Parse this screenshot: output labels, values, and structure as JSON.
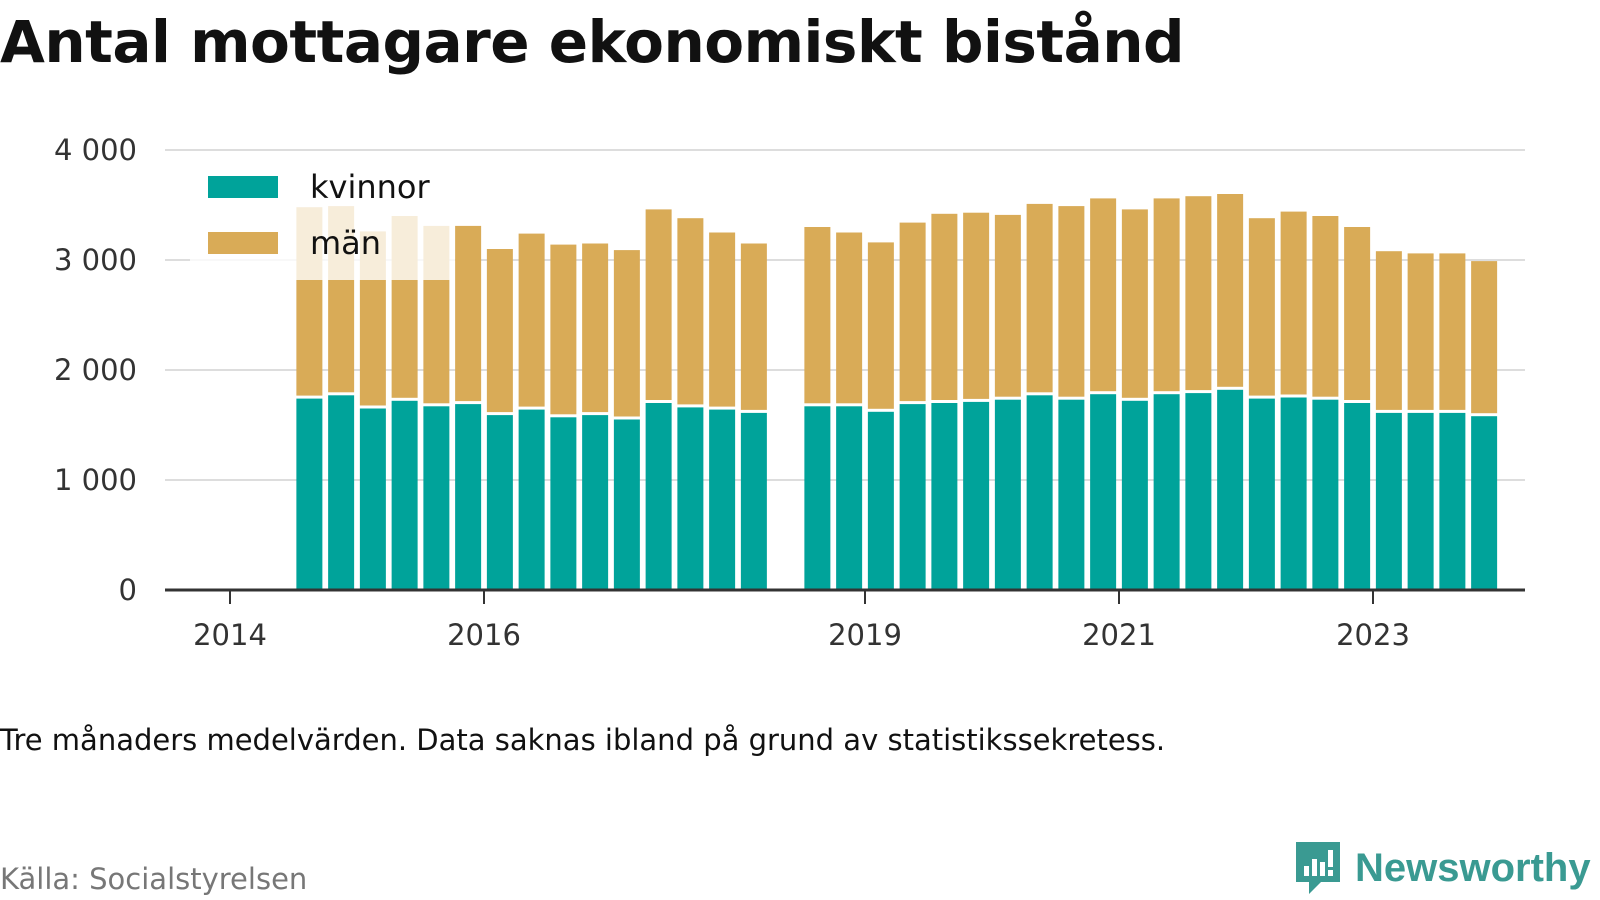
{
  "title": "Antal mottagare ekonomiskt bistånd",
  "note": "Tre månaders medelvärden. Data saknas ibland på grund av statistikssekretess.",
  "source": "Källa: Socialstyrelsen",
  "brand": {
    "name": "Newsworthy",
    "icon": "newsworthy-logo-icon"
  },
  "colors": {
    "kvinnor": "#00a39a",
    "man": "#d9ab57",
    "grid": "#dddddd",
    "axis": "#333333"
  },
  "chart_data": {
    "type": "bar",
    "stacked": true,
    "x_unit": "quarter",
    "x_ticks": [
      "2014",
      "2016",
      "2019",
      "2021",
      "2023"
    ],
    "y_ticks": [
      "0",
      "1 000",
      "2 000",
      "3 000",
      "4 000"
    ],
    "ylim": [
      0,
      4000
    ],
    "grid": true,
    "legend": "top-left",
    "quarters": [
      "2014Q3",
      "2014Q4",
      "2015Q1",
      "2015Q2",
      "2015Q3",
      "2015Q4",
      "2016Q1",
      "2016Q2",
      "2016Q3",
      "2016Q4",
      "2017Q1",
      "2017Q2",
      "2017Q3",
      "2017Q4",
      "2018Q1",
      "2018Q3",
      "2018Q4",
      "2019Q1",
      "2019Q2",
      "2019Q3",
      "2019Q4",
      "2020Q1",
      "2020Q2",
      "2020Q3",
      "2020Q4",
      "2021Q1",
      "2021Q2",
      "2021Q3",
      "2021Q4",
      "2022Q1",
      "2022Q2",
      "2022Q3",
      "2022Q4",
      "2023Q1",
      "2023Q2",
      "2023Q3",
      "2023Q4"
    ],
    "series": [
      {
        "name": "kvinnor",
        "values": [
          1740,
          1770,
          1650,
          1720,
          1670,
          1690,
          1590,
          1640,
          1570,
          1590,
          1550,
          1700,
          1660,
          1640,
          1610,
          1670,
          1670,
          1620,
          1690,
          1700,
          1710,
          1730,
          1770,
          1730,
          1780,
          1720,
          1780,
          1790,
          1820,
          1740,
          1750,
          1730,
          1700,
          1610,
          1610,
          1610,
          1580
        ]
      },
      {
        "name": "män",
        "values": [
          1740,
          1720,
          1610,
          1680,
          1640,
          1620,
          1510,
          1600,
          1570,
          1560,
          1540,
          1760,
          1720,
          1610,
          1540,
          1630,
          1580,
          1540,
          1650,
          1720,
          1720,
          1680,
          1740,
          1760,
          1780,
          1740,
          1780,
          1790,
          1780,
          1640,
          1690,
          1670,
          1600,
          1470,
          1450,
          1450,
          1410
        ]
      }
    ]
  }
}
